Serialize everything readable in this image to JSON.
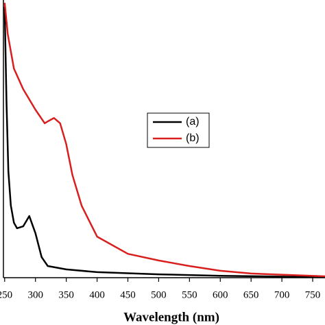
{
  "chart_data": {
    "type": "line",
    "x_label": "Wavelength (nm)",
    "xlim": [
      248,
      770
    ],
    "ylim": [
      0,
      1
    ],
    "xticks": [
      250,
      300,
      350,
      400,
      450,
      500,
      550,
      600,
      650,
      700,
      750
    ],
    "series": [
      {
        "name": "(a)",
        "color": "#000000",
        "x": [
          250,
          253,
          256,
          260,
          265,
          270,
          280,
          290,
          300,
          310,
          320,
          350,
          400,
          500,
          600,
          770
        ],
        "values": [
          0.975,
          0.63,
          0.383,
          0.26,
          0.198,
          0.178,
          0.185,
          0.222,
          0.16,
          0.074,
          0.042,
          0.03,
          0.02,
          0.012,
          0.007,
          0.002
        ]
      },
      {
        "name": "(b)",
        "color": "#d91e1e",
        "x": [
          250,
          255,
          265,
          280,
          300,
          315,
          320,
          330,
          340,
          350,
          360,
          375,
          400,
          450,
          500,
          550,
          600,
          650,
          770
        ],
        "values": [
          0.99,
          0.877,
          0.753,
          0.679,
          0.605,
          0.556,
          0.563,
          0.575,
          0.556,
          0.481,
          0.37,
          0.259,
          0.148,
          0.086,
          0.062,
          0.042,
          0.025,
          0.015,
          0.005
        ]
      }
    ],
    "legend": "center"
  }
}
